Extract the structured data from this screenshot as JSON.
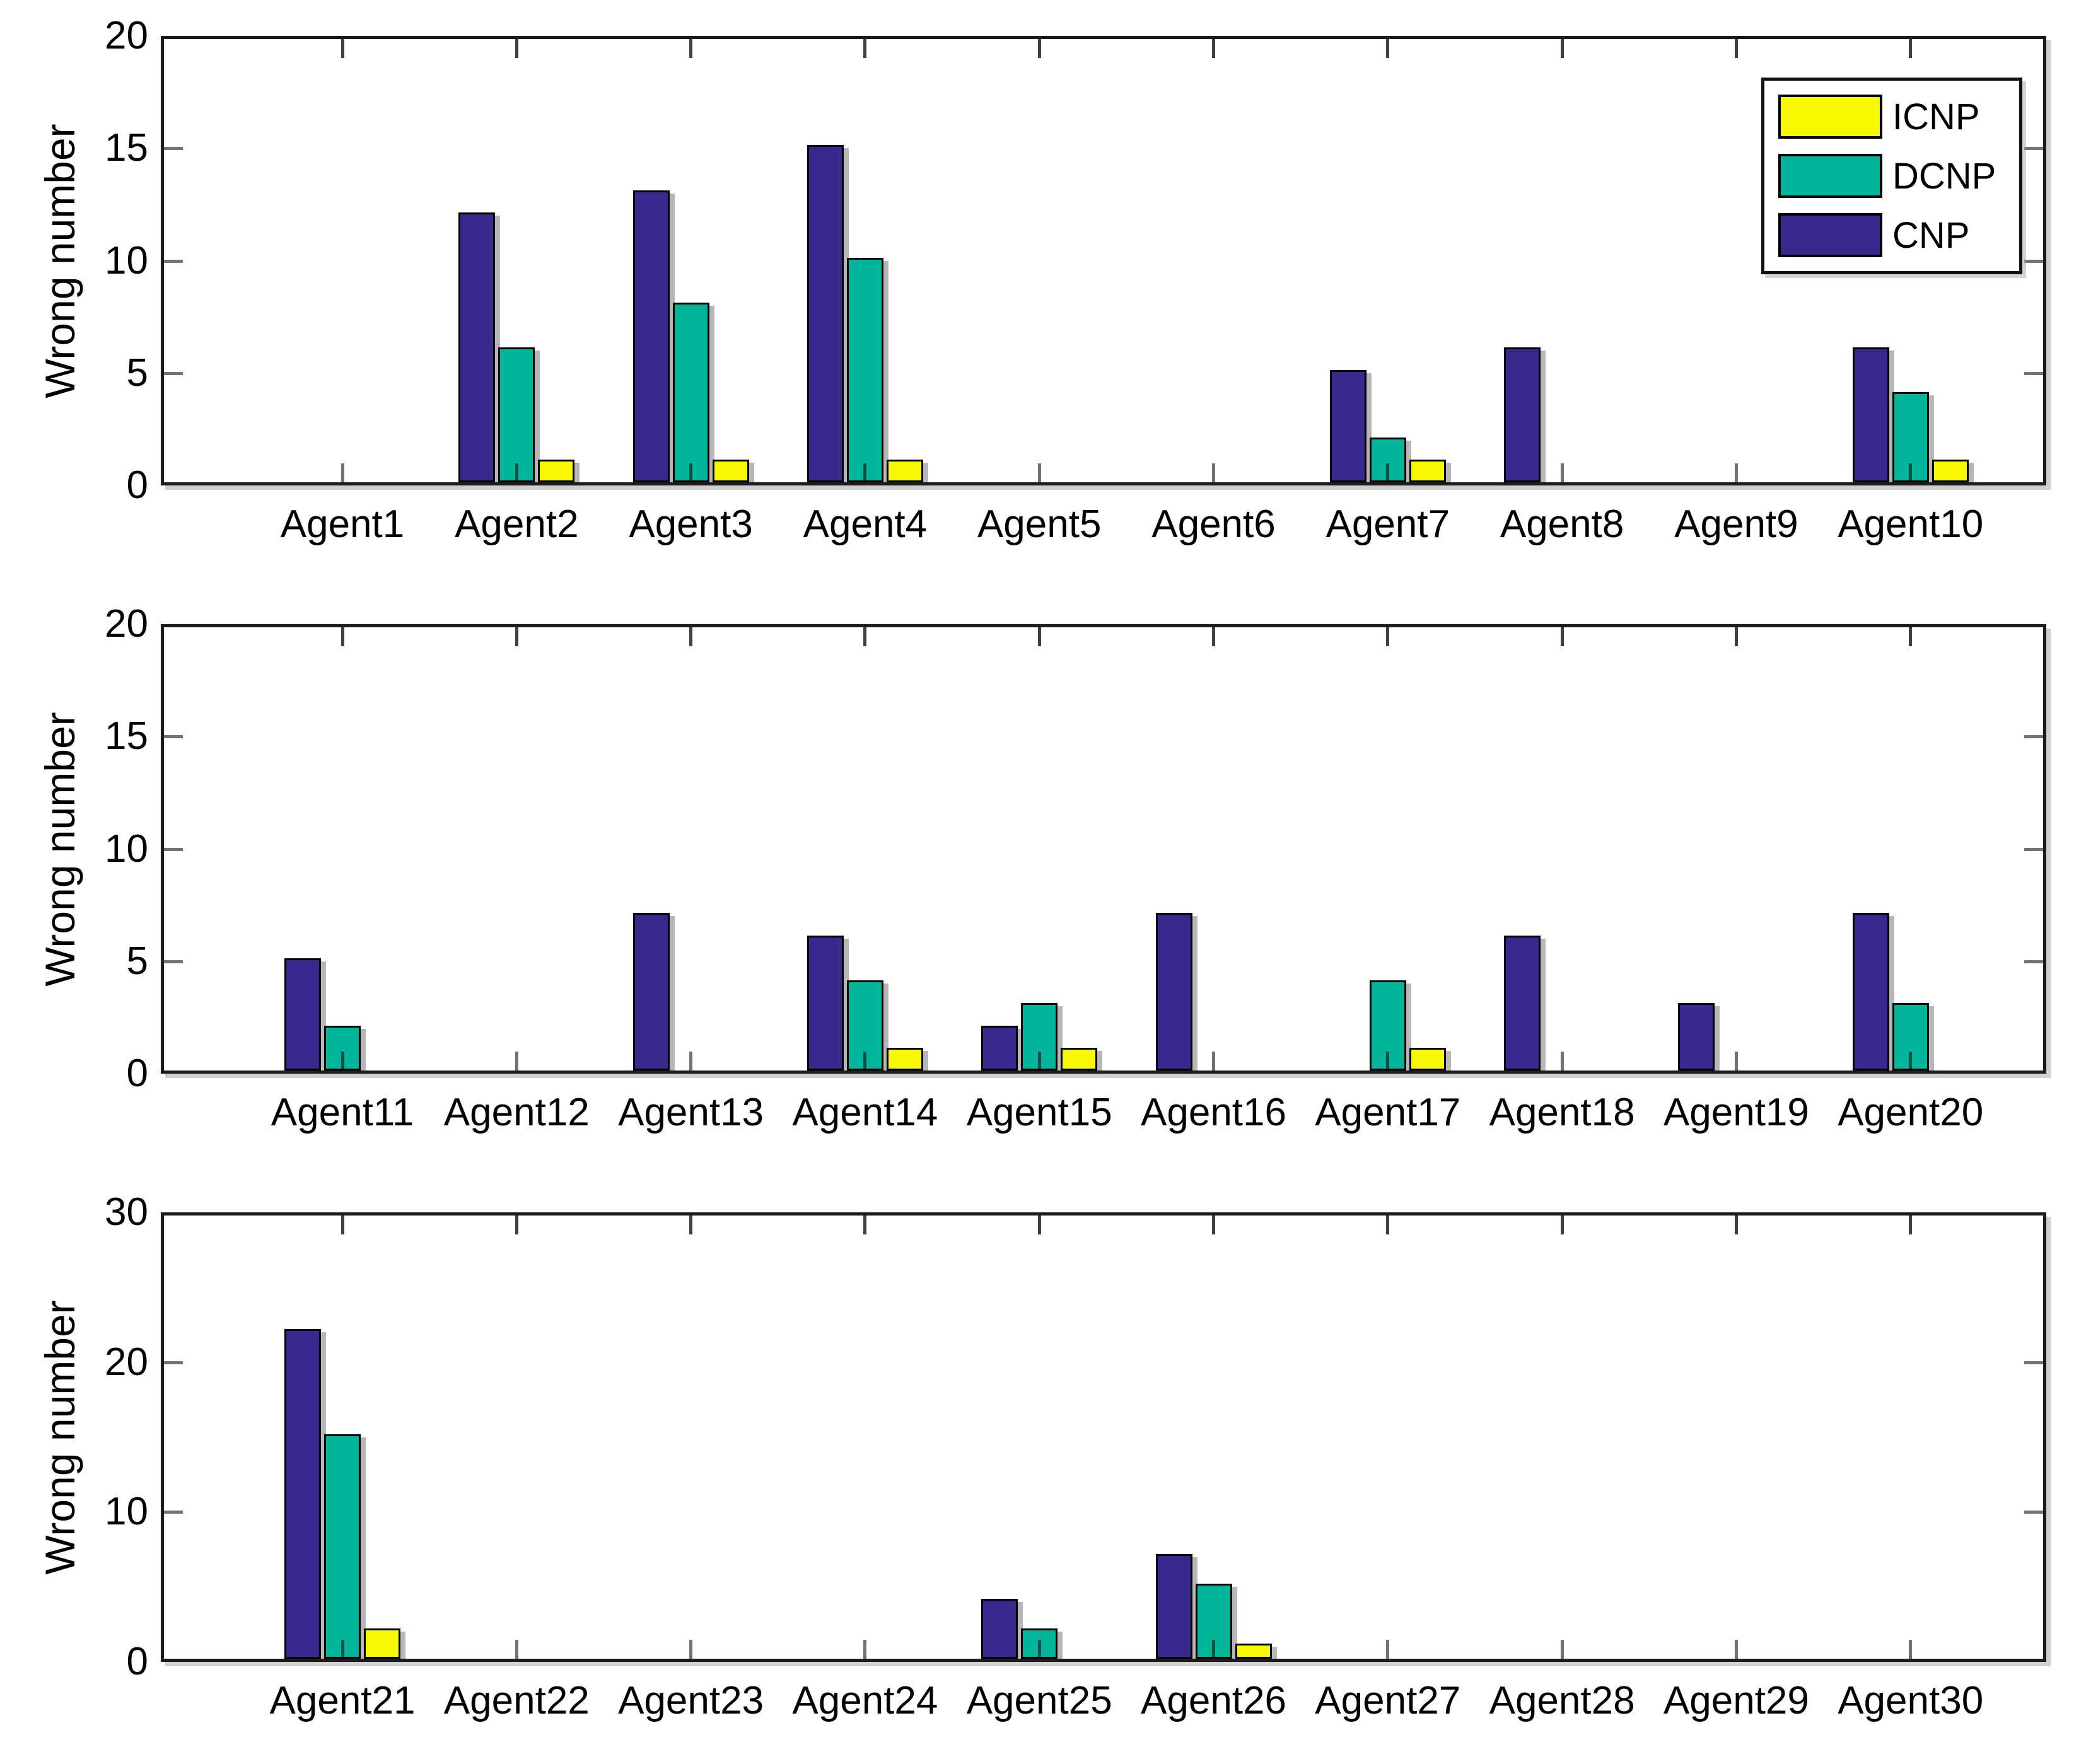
{
  "figure": {
    "background_color": "#ffffff",
    "axis_color": "#1c1c1c"
  },
  "chart_data": [
    {
      "type": "bar",
      "title": "",
      "xlabel": "",
      "ylabel": "Wrong number",
      "ylim": [
        0,
        20
      ],
      "yticks": [
        0,
        5,
        10,
        15,
        20
      ],
      "grid": false,
      "legend_position": "top-right",
      "categories": [
        "Agent1",
        "Agent2",
        "Agent3",
        "Agent4",
        "Agent5",
        "Agent6",
        "Agent7",
        "Agent8",
        "Agent9",
        "Agent10"
      ],
      "series": [
        {
          "name": "CNP",
          "color": "#36288c",
          "values": [
            0,
            12,
            13,
            15,
            0,
            0,
            5,
            6,
            0,
            6
          ]
        },
        {
          "name": "DCNP",
          "color": "#00b69a",
          "values": [
            0,
            6,
            8,
            10,
            0,
            0,
            2,
            0,
            0,
            4
          ]
        },
        {
          "name": "ICNP",
          "color": "#f8f800",
          "values": [
            0,
            1,
            1,
            1,
            0,
            0,
            1,
            0,
            0,
            1
          ]
        }
      ]
    },
    {
      "type": "bar",
      "title": "",
      "xlabel": "",
      "ylabel": "Wrong number",
      "ylim": [
        0,
        20
      ],
      "yticks": [
        0,
        5,
        10,
        15,
        20
      ],
      "grid": false,
      "categories": [
        "Agent11",
        "Agent12",
        "Agent13",
        "Agent14",
        "Agent15",
        "Agent16",
        "Agent17",
        "Agent18",
        "Agent19",
        "Agent20"
      ],
      "series": [
        {
          "name": "CNP",
          "color": "#36288c",
          "values": [
            5,
            0,
            7,
            6,
            2,
            7,
            0,
            6,
            3,
            7
          ]
        },
        {
          "name": "DCNP",
          "color": "#00b69a",
          "values": [
            2,
            0,
            0,
            4,
            3,
            0,
            4,
            0,
            0,
            3
          ]
        },
        {
          "name": "ICNP",
          "color": "#f8f800",
          "values": [
            0,
            0,
            0,
            1,
            1,
            0,
            1,
            0,
            0,
            0
          ]
        }
      ]
    },
    {
      "type": "bar",
      "title": "",
      "xlabel": "",
      "ylabel": "Wrong number",
      "ylim": [
        0,
        30
      ],
      "yticks": [
        0,
        10,
        20,
        30
      ],
      "grid": false,
      "categories": [
        "Agent21",
        "Agent22",
        "Agent23",
        "Agent24",
        "Agent25",
        "Agent26",
        "Agent27",
        "Agent28",
        "Agent29",
        "Agent30"
      ],
      "series": [
        {
          "name": "CNP",
          "color": "#36288c",
          "values": [
            22,
            0,
            0,
            0,
            4,
            7,
            0,
            0,
            0,
            0
          ]
        },
        {
          "name": "DCNP",
          "color": "#00b69a",
          "values": [
            15,
            0,
            0,
            0,
            2,
            5,
            0,
            0,
            0,
            0
          ]
        },
        {
          "name": "ICNP",
          "color": "#f8f800",
          "values": [
            2,
            0,
            0,
            0,
            0,
            1,
            0,
            0,
            0,
            0
          ]
        }
      ]
    }
  ],
  "legend": {
    "entries": [
      {
        "label": "ICNP",
        "color": "#f8f800"
      },
      {
        "label": "DCNP",
        "color": "#00b69a"
      },
      {
        "label": "CNP",
        "color": "#36288c"
      }
    ]
  }
}
